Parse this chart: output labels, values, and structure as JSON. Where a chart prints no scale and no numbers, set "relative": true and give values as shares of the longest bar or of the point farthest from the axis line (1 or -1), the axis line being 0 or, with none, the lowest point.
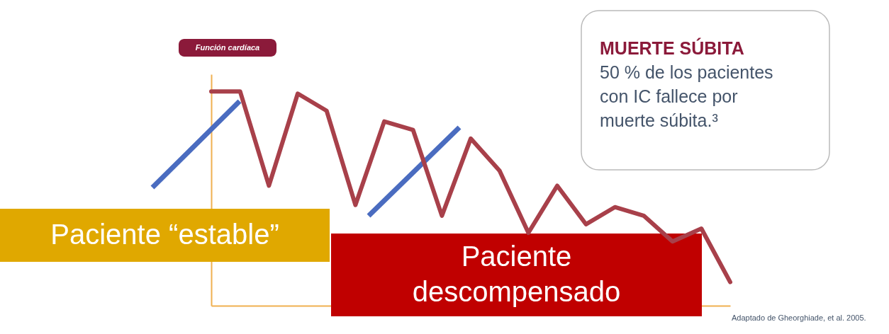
{
  "chart_data": {
    "type": "line",
    "relative": true,
    "grid": false,
    "line_style": "solid",
    "categories": [
      null,
      null,
      null,
      null,
      null,
      null,
      null,
      null,
      null,
      null,
      null,
      null,
      null,
      null,
      null,
      null,
      null,
      null,
      null
    ],
    "series": [
      {
        "color": "#a8404a",
        "values": [
          1.0,
          1.0,
          0.56,
          0.99,
          0.91,
          0.47,
          0.86,
          0.82,
          0.42,
          0.78,
          0.63,
          0.34,
          0.56,
          0.38,
          0.46,
          0.42,
          0.3,
          0.36,
          0.11
        ]
      }
    ],
    "annotations": [
      "Función cardíaca",
      "Paciente “estable”",
      "Paciente descompensado",
      "MUERTE SÚBITA\n50 % de los pacientes\ncon IC fallece por\nmuerte súbita.³",
      "Adaptado de Gheorghiade, et al. 2005."
    ]
  }
}
